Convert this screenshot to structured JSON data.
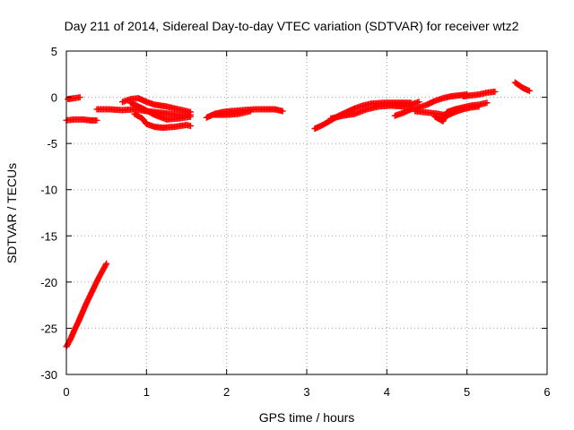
{
  "chart_data": {
    "type": "scatter",
    "title": "Day 211 of 2014, Sidereal Day-to-day VTEC variation (SDTVAR) for receiver wtz2",
    "xlabel": "GPS time / hours",
    "ylabel": "SDTVAR / TECUs",
    "xlim": [
      0,
      6
    ],
    "ylim": [
      -30,
      5
    ],
    "xticks": [
      0,
      1,
      2,
      3,
      4,
      5,
      6
    ],
    "yticks": [
      5,
      0,
      -5,
      -10,
      -15,
      -20,
      -25,
      -30
    ],
    "grid": true,
    "marker": "+",
    "color": "#ff0000",
    "series": [
      {
        "segments": [
          [
            [
              0.02,
              -0.2
            ],
            [
              0.1,
              -0.1
            ],
            [
              0.17,
              0.0
            ]
          ],
          [
            [
              0.0,
              -2.5
            ],
            [
              0.1,
              -2.4
            ],
            [
              0.2,
              -2.4
            ],
            [
              0.3,
              -2.5
            ],
            [
              0.38,
              -2.5
            ]
          ],
          [
            [
              0.0,
              -27.0
            ],
            [
              0.05,
              -26.2
            ],
            [
              0.1,
              -25.2
            ],
            [
              0.15,
              -24.3
            ],
            [
              0.2,
              -23.3
            ],
            [
              0.25,
              -22.3
            ],
            [
              0.3,
              -21.4
            ],
            [
              0.35,
              -20.5
            ],
            [
              0.4,
              -19.6
            ],
            [
              0.45,
              -18.8
            ],
            [
              0.5,
              -18.0
            ]
          ],
          [
            [
              0.38,
              -1.3
            ],
            [
              0.55,
              -1.3
            ],
            [
              0.7,
              -1.4
            ],
            [
              0.85,
              -1.3
            ],
            [
              1.0,
              -1.5
            ],
            [
              1.2,
              -1.7
            ],
            [
              1.4,
              -1.9
            ],
            [
              1.55,
              -1.9
            ]
          ],
          [
            [
              0.7,
              -0.5
            ],
            [
              0.8,
              -0.2
            ],
            [
              0.9,
              -0.1
            ],
            [
              1.0,
              -0.5
            ],
            [
              1.1,
              -0.8
            ],
            [
              1.25,
              -1.0
            ],
            [
              1.4,
              -1.3
            ],
            [
              1.55,
              -1.6
            ]
          ],
          [
            [
              0.85,
              -1.8
            ],
            [
              0.95,
              -2.3
            ],
            [
              1.0,
              -2.9
            ],
            [
              1.1,
              -3.2
            ],
            [
              1.2,
              -3.3
            ],
            [
              1.35,
              -3.2
            ],
            [
              1.5,
              -3.0
            ],
            [
              1.55,
              -3.1
            ]
          ],
          [
            [
              0.8,
              -0.6
            ],
            [
              0.95,
              -1.2
            ],
            [
              1.1,
              -1.9
            ],
            [
              1.25,
              -2.4
            ],
            [
              1.4,
              -2.3
            ],
            [
              1.55,
              -2.1
            ]
          ],
          [
            [
              1.75,
              -2.2
            ],
            [
              1.85,
              -1.8
            ],
            [
              1.95,
              -1.6
            ],
            [
              2.05,
              -1.5
            ],
            [
              2.2,
              -1.4
            ],
            [
              2.35,
              -1.3
            ],
            [
              2.5,
              -1.3
            ],
            [
              2.6,
              -1.3
            ],
            [
              2.7,
              -1.5
            ]
          ],
          [
            [
              1.85,
              -1.9
            ],
            [
              2.0,
              -1.9
            ],
            [
              2.15,
              -1.8
            ],
            [
              2.3,
              -1.5
            ]
          ],
          [
            [
              3.1,
              -3.4
            ],
            [
              3.2,
              -3.0
            ],
            [
              3.3,
              -2.5
            ],
            [
              3.4,
              -2.0
            ],
            [
              3.5,
              -1.6
            ],
            [
              3.6,
              -1.2
            ],
            [
              3.7,
              -0.9
            ],
            [
              3.8,
              -0.7
            ],
            [
              3.95,
              -0.6
            ],
            [
              4.1,
              -0.6
            ],
            [
              4.2,
              -0.6
            ],
            [
              4.3,
              -0.6
            ]
          ],
          [
            [
              3.3,
              -2.3
            ],
            [
              3.45,
              -2.0
            ],
            [
              3.6,
              -1.8
            ],
            [
              3.75,
              -1.3
            ],
            [
              3.9,
              -1.0
            ],
            [
              4.05,
              -0.9
            ],
            [
              4.2,
              -1.0
            ],
            [
              4.3,
              -0.8
            ],
            [
              4.4,
              -0.5
            ]
          ],
          [
            [
              4.1,
              -2.0
            ],
            [
              4.2,
              -1.7
            ],
            [
              4.3,
              -1.3
            ],
            [
              4.4,
              -1.1
            ],
            [
              4.5,
              -0.8
            ],
            [
              4.6,
              -0.4
            ],
            [
              4.7,
              -0.1
            ],
            [
              4.8,
              0.1
            ],
            [
              4.9,
              0.2
            ],
            [
              5.0,
              0.3
            ]
          ],
          [
            [
              4.35,
              -1.5
            ],
            [
              4.45,
              -1.6
            ],
            [
              4.55,
              -1.7
            ],
            [
              4.65,
              -1.8
            ],
            [
              4.75,
              -2.0
            ],
            [
              4.85,
              -1.6
            ],
            [
              4.95,
              -1.3
            ],
            [
              5.05,
              -1.1
            ],
            [
              5.15,
              -1.0
            ]
          ],
          [
            [
              4.6,
              -2.1
            ],
            [
              4.7,
              -2.6
            ],
            [
              4.75,
              -1.6
            ],
            [
              4.85,
              -1.3
            ],
            [
              4.95,
              -1.1
            ],
            [
              5.05,
              -0.9
            ],
            [
              5.15,
              -0.8
            ],
            [
              5.25,
              -0.6
            ]
          ],
          [
            [
              4.95,
              0.1
            ],
            [
              5.05,
              0.2
            ],
            [
              5.15,
              0.3
            ],
            [
              5.25,
              0.5
            ],
            [
              5.35,
              0.6
            ]
          ],
          [
            [
              5.6,
              1.6
            ],
            [
              5.65,
              1.3
            ],
            [
              5.7,
              1.0
            ],
            [
              5.75,
              0.8
            ],
            [
              5.78,
              0.7
            ]
          ]
        ]
      }
    ]
  }
}
